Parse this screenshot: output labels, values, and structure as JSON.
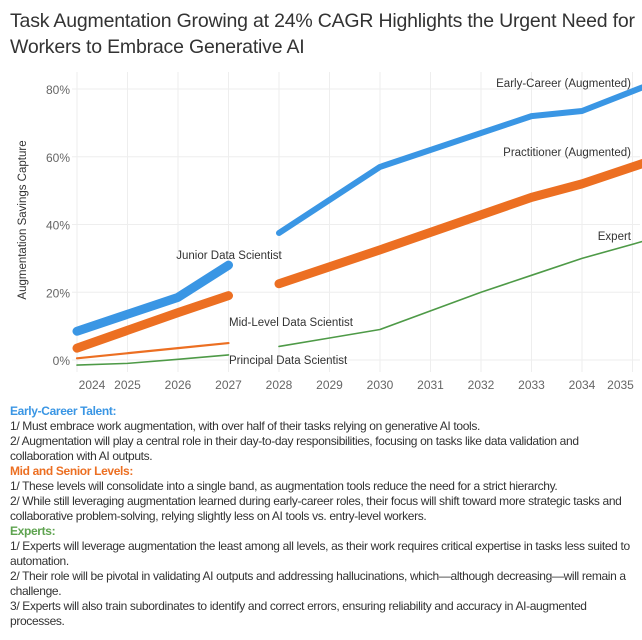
{
  "title": "Task Augmentation Growing at 24% CAGR Highlights the Urgent Need for Workers to Embrace Generative AI",
  "chart_data": {
    "type": "line",
    "title": "Task Augmentation Growing at 24% CAGR Highlights the Urgent Need for Workers to Embrace Generative AI",
    "xlabel": "",
    "ylabel": "Augmentation Savings Capture",
    "xlim": [
      2024,
      2035.2
    ],
    "ylim": [
      -3,
      82
    ],
    "yticks": [
      0,
      20,
      40,
      60,
      80
    ],
    "ytick_labels": [
      "0%",
      "20%",
      "40%",
      "60%",
      "80%"
    ],
    "xticks": [
      2024,
      2025,
      2026,
      2027,
      2028,
      2029,
      2030,
      2031,
      2032,
      2033,
      2034,
      2035
    ],
    "grid": true,
    "series": [
      {
        "name": "Junior Data Scientist",
        "color": "#3a96e4",
        "weight": "thick",
        "x": [
          2024,
          2026,
          2027
        ],
        "y": [
          8.5,
          18.5,
          28
        ],
        "label_pos": "above-end"
      },
      {
        "name": "Mid-Level Data Scientist",
        "color": "#ec6f22",
        "weight": "thick",
        "x": [
          2024,
          2026,
          2027
        ],
        "y": [
          3.5,
          14,
          19
        ],
        "label_pos": "below-end"
      },
      {
        "name": "Principal Data Scientist",
        "color": "#ec6f22",
        "weight": "thin",
        "x": [
          2024,
          2026,
          2027
        ],
        "y": [
          0.5,
          3.5,
          5
        ],
        "label_pos": "below-end"
      },
      {
        "name": "",
        "color": "#4e9a47",
        "weight": "thin",
        "x": [
          2024,
          2025,
          2026,
          2027
        ],
        "y": [
          -1.5,
          -1,
          0.2,
          1.5
        ]
      },
      {
        "name": "Early-Career (Augmented)",
        "color": "#3a96e4",
        "weight": "medium",
        "x": [
          2028,
          2030,
          2033,
          2034,
          2035.2
        ],
        "y": [
          37.5,
          57,
          72,
          73.5,
          80.5
        ],
        "label_pos": "above-end"
      },
      {
        "name": "Practitioner (Augmented)",
        "color": "#ec6f22",
        "weight": "thick",
        "x": [
          2028,
          2030,
          2033,
          2034,
          2035.2
        ],
        "y": [
          22.5,
          32.5,
          48,
          52,
          58
        ],
        "label_pos": "above-end"
      },
      {
        "name": "Expert",
        "color": "#4e9a47",
        "weight": "thin",
        "x": [
          2028,
          2029,
          2030,
          2032,
          2033,
          2034,
          2035.2
        ],
        "y": [
          4,
          6.5,
          9,
          20,
          25,
          30,
          35
        ],
        "label_pos": "above-end"
      }
    ]
  },
  "notes": [
    {
      "heading": "Early-Career Talent:",
      "color": "#3a96e4",
      "items": [
        "1/ Must embrace work augmentation, with over half of their tasks relying on generative AI tools.",
        "2/ Augmentation will play a central role in their day-to-day responsibilities, focusing on tasks like data validation and collaboration with AI outputs."
      ]
    },
    {
      "heading": "Mid and Senior Levels:",
      "color": "#ec6f22",
      "items": [
        "1/ These levels will consolidate into a single band, as augmentation tools reduce the need for a strict hierarchy.",
        "2/ While still leveraging augmentation learned during early-career roles, their focus will shift toward more strategic tasks and collaborative problem-solving, relying slightly less on AI tools vs. entry-level workers."
      ]
    },
    {
      "heading": "Experts:",
      "color": "#5ea34f",
      "items": [
        "1/ Experts will leverage augmentation the least among all levels, as their work requires critical expertise in tasks less suited to automation.",
        "2/ Their role will be pivotal in validating AI outputs and addressing hallucinations, which—although decreasing—will remain a challenge.",
        "3/ Experts will also train subordinates to identify and correct errors, ensuring reliability and accuracy in AI-augmented processes."
      ]
    }
  ]
}
